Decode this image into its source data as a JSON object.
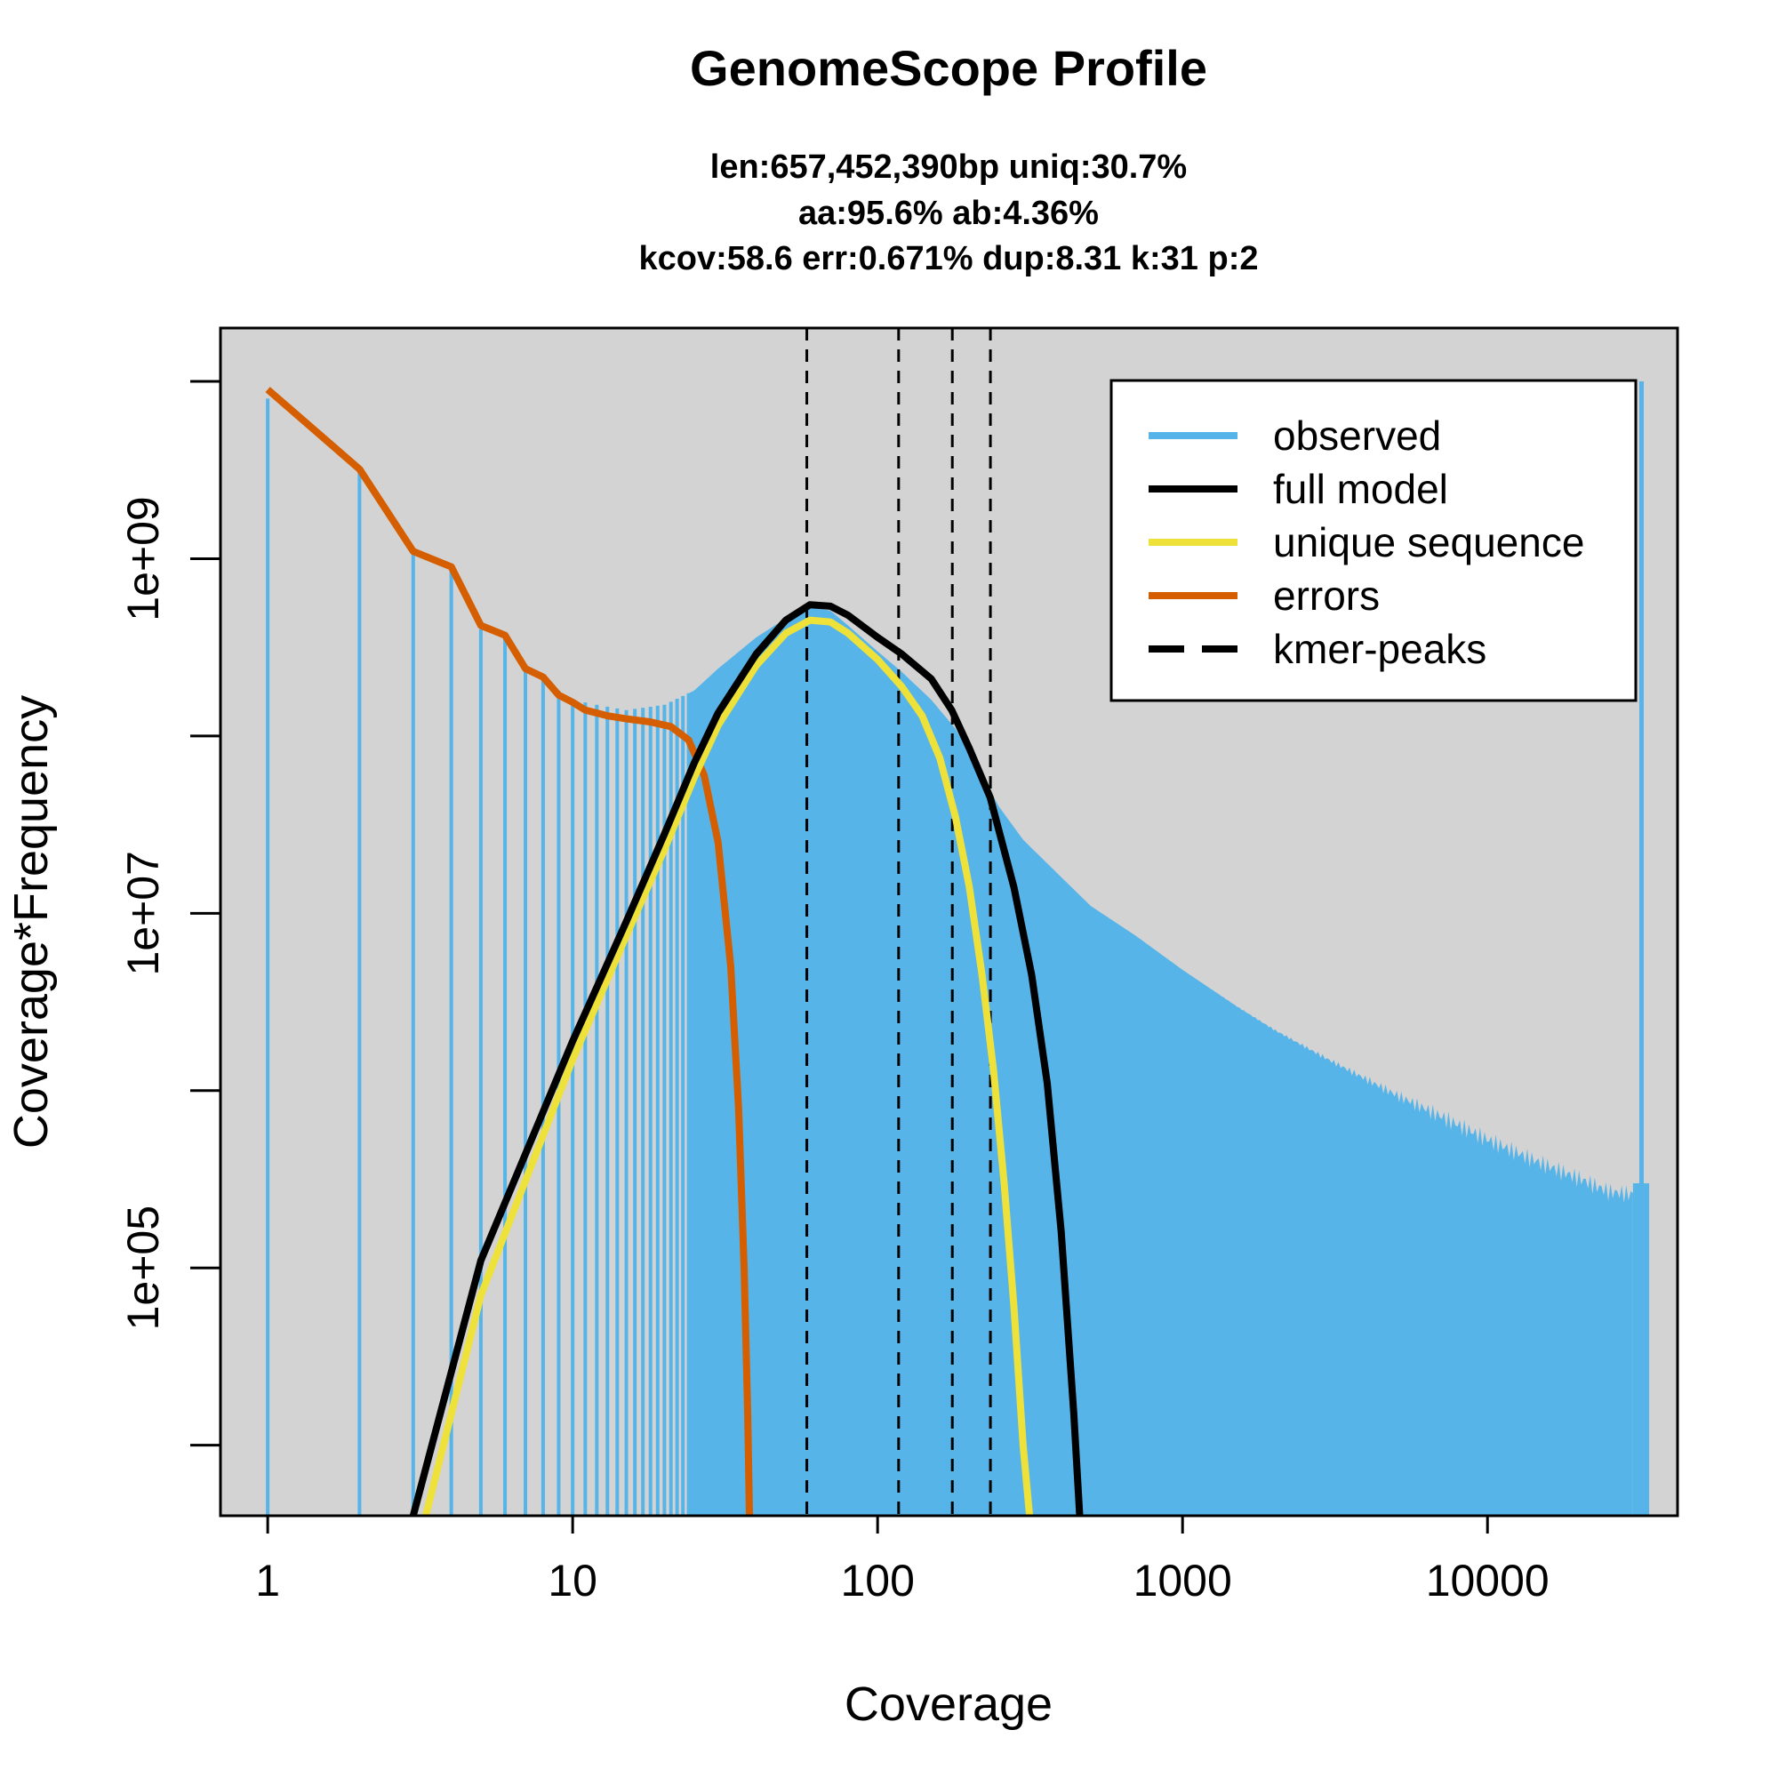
{
  "chart_data": {
    "type": "bar",
    "title": "GenomeScope Profile",
    "subtitle_lines": [
      "len:657,452,390bp uniq:30.7%",
      "aa:95.6% ab:4.36%",
      "kcov:58.6 err:0.671%  dup:8.31  k:31 p:2"
    ],
    "xlabel": "Coverage",
    "ylabel": "Coverage*Frequency",
    "x_scale": "log",
    "y_scale": "log",
    "xlim": [
      0.7,
      42000
    ],
    "ylim": [
      4000,
      20000000000
    ],
    "x_ticks": [
      {
        "value": 1,
        "label": "1"
      },
      {
        "value": 10,
        "label": "10"
      },
      {
        "value": 100,
        "label": "100"
      },
      {
        "value": 1000,
        "label": "1000"
      },
      {
        "value": 10000,
        "label": "10000"
      }
    ],
    "y_ticks": [
      {
        "value": 10000,
        "label": ""
      },
      {
        "value": 100000,
        "label": "1e+05"
      },
      {
        "value": 1000000,
        "label": ""
      },
      {
        "value": 10000000,
        "label": "1e+07"
      },
      {
        "value": 100000000,
        "label": ""
      },
      {
        "value": 1000000000,
        "label": "1e+09"
      },
      {
        "value": 10000000000,
        "label": ""
      }
    ],
    "kmer_peaks": [
      58.6,
      117.2,
      175.8,
      234.4
    ],
    "observed_points": [
      [
        1,
        8000000000.0
      ],
      [
        2,
        3200000000.0
      ],
      [
        3,
        1100000000.0
      ],
      [
        4,
        900000000.0
      ],
      [
        5,
        400000000.0
      ],
      [
        6,
        350000000.0
      ],
      [
        7,
        250000000.0
      ],
      [
        8,
        220000000.0
      ],
      [
        9,
        180000000.0
      ],
      [
        10,
        160000000.0
      ],
      [
        12,
        150000000.0
      ],
      [
        15,
        140000000.0
      ],
      [
        20,
        150000000.0
      ],
      [
        25,
        180000000.0
      ],
      [
        30,
        240000000.0
      ],
      [
        40,
        360000000.0
      ],
      [
        50,
        460000000.0
      ],
      [
        60,
        530000000.0
      ],
      [
        70,
        510000000.0
      ],
      [
        80,
        420000000.0
      ],
      [
        100,
        300000000.0
      ],
      [
        120,
        230000000.0
      ],
      [
        150,
        160000000.0
      ],
      [
        180,
        110000000.0
      ],
      [
        200,
        80000000.0
      ],
      [
        250,
        40000000.0
      ],
      [
        300,
        26000000.0
      ],
      [
        400,
        16000000.0
      ],
      [
        500,
        11000000.0
      ],
      [
        700,
        7500000.0
      ],
      [
        1000,
        4800000.0
      ],
      [
        1500,
        3000000.0
      ],
      [
        2000,
        2200000.0
      ],
      [
        3000,
        1500000.0
      ],
      [
        5000,
        950000.0
      ],
      [
        7000,
        720000.0
      ],
      [
        10000,
        530000.0
      ],
      [
        15000,
        390000.0
      ],
      [
        20000,
        320000.0
      ],
      [
        25000,
        270000.0
      ],
      [
        30000,
        260000.0
      ],
      [
        32000,
        10000000000.0
      ],
      [
        33000,
        300000.0
      ]
    ],
    "series": [
      {
        "name": "full model",
        "color": "#000000",
        "points": [
          [
            3,
            4000.0
          ],
          [
            5,
            110000.0
          ],
          [
            10,
            1900000.0
          ],
          [
            15,
            9000000.0
          ],
          [
            20,
            28000000.0
          ],
          [
            25,
            70000000.0
          ],
          [
            30,
            135000000.0
          ],
          [
            40,
            290000000.0
          ],
          [
            50,
            450000000.0
          ],
          [
            60,
            550000000.0
          ],
          [
            70,
            540000000.0
          ],
          [
            80,
            480000000.0
          ],
          [
            100,
            360000000.0
          ],
          [
            120,
            290000000.0
          ],
          [
            150,
            210000000.0
          ],
          [
            175,
            140000000.0
          ],
          [
            200,
            85000000.0
          ],
          [
            234,
            45000000.0
          ],
          [
            280,
            14000000.0
          ],
          [
            320,
            4500000.0
          ],
          [
            360,
            1100000.0
          ],
          [
            400,
            160000.0
          ],
          [
            440,
            15000.0
          ],
          [
            460,
            4000.0
          ]
        ]
      },
      {
        "name": "unique sequence",
        "color": "#EEE139",
        "points": [
          [
            3.3,
            4000.0
          ],
          [
            5,
            70000.0
          ],
          [
            10,
            1500000.0
          ],
          [
            15,
            7500000.0
          ],
          [
            20,
            23000000.0
          ],
          [
            25,
            58000000.0
          ],
          [
            30,
            115000000.0
          ],
          [
            40,
            250000000.0
          ],
          [
            50,
            380000000.0
          ],
          [
            60,
            450000000.0
          ],
          [
            70,
            440000000.0
          ],
          [
            80,
            380000000.0
          ],
          [
            100,
            270000000.0
          ],
          [
            120,
            190000000.0
          ],
          [
            140,
            130000000.0
          ],
          [
            160,
            75000000.0
          ],
          [
            180,
            35000000.0
          ],
          [
            200,
            14000000.0
          ],
          [
            220,
            4500000.0
          ],
          [
            240,
            1300000.0
          ],
          [
            260,
            300000.0
          ],
          [
            280,
            60000.0
          ],
          [
            300,
            10000.0
          ],
          [
            315,
            4000.0
          ]
        ]
      },
      {
        "name": "errors",
        "color": "#D55E00",
        "points": [
          [
            1,
            9000000000.0
          ],
          [
            2,
            3200000000.0
          ],
          [
            3,
            1100000000.0
          ],
          [
            4,
            900000000.0
          ],
          [
            5,
            420000000.0
          ],
          [
            6,
            370000000.0
          ],
          [
            7,
            240000000.0
          ],
          [
            8,
            215000000.0
          ],
          [
            9,
            170000000.0
          ],
          [
            10,
            155000000.0
          ],
          [
            11,
            140000000.0
          ],
          [
            13,
            130000000.0
          ],
          [
            15,
            125000000.0
          ],
          [
            18,
            120000000.0
          ],
          [
            21,
            113000000.0
          ],
          [
            24,
            95000000.0
          ],
          [
            27,
            60000000.0
          ],
          [
            30,
            25000000.0
          ],
          [
            33,
            5000000.0
          ],
          [
            35,
            800000.0
          ],
          [
            36.5,
            100000.0
          ],
          [
            37.5,
            15000.0
          ],
          [
            38,
            4000.0
          ]
        ]
      }
    ],
    "legend": {
      "position": "top-right",
      "items": [
        {
          "label": "observed",
          "color": "#56B4E9",
          "style": "solid"
        },
        {
          "label": "full model",
          "color": "#000000",
          "style": "solid"
        },
        {
          "label": "unique sequence",
          "color": "#EEE139",
          "style": "solid"
        },
        {
          "label": "errors",
          "color": "#D55E00",
          "style": "solid"
        },
        {
          "label": "kmer-peaks",
          "color": "#000000",
          "style": "dashed"
        }
      ]
    },
    "colors": {
      "background_panel": "#D3D3D3",
      "observed": "#56B4E9"
    }
  }
}
